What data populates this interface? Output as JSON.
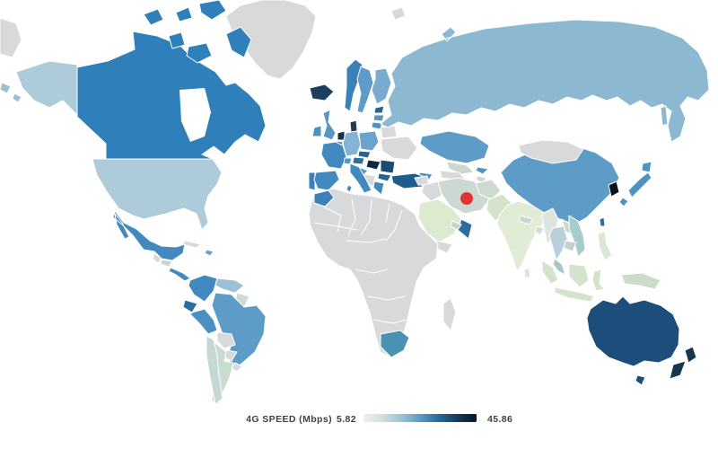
{
  "title": "World choropleth map of 4G speed",
  "legend": {
    "label": "4G SPEED (Mbps)",
    "min_value": "5.82",
    "max_value": "45.86",
    "gradient_stops": [
      "#edf2e6",
      "#cde0dc",
      "#9fc2d5",
      "#5c9ac6",
      "#2a6899",
      "#143a5c",
      "#0d1724"
    ]
  },
  "map": {
    "background_color": "#ffffff",
    "country_border_color": "#ffffff",
    "no_data_color": "#d8d9da",
    "marker": {
      "name": "red-dot-marker",
      "shape": "circle",
      "color": "#e23436",
      "location": "iran"
    },
    "countries": [
      {
        "id": "greenland",
        "fill": "#d8d9da"
      },
      {
        "id": "arctic-wrap",
        "fill": "#d8d9da"
      },
      {
        "id": "aleutian-islands",
        "fill": "#9dbfd4"
      },
      {
        "id": "canada",
        "fill": "#2e7fba"
      },
      {
        "id": "usa",
        "fill": "#aecbd9"
      },
      {
        "id": "mexico",
        "fill": "#4189bf"
      },
      {
        "id": "guatemala",
        "fill": "#d8d9da"
      },
      {
        "id": "honduras",
        "fill": "#c6d6d2"
      },
      {
        "id": "panama",
        "fill": "#4189bf"
      },
      {
        "id": "cuba",
        "fill": "#cfdcd7"
      },
      {
        "id": "hispaniola",
        "fill": "#6ba4cb"
      },
      {
        "id": "colombia",
        "fill": "#4189bf"
      },
      {
        "id": "venezuela",
        "fill": "#9cc0d4"
      },
      {
        "id": "guyana",
        "fill": "#ccdcd2"
      },
      {
        "id": "ecuador",
        "fill": "#2a6da0"
      },
      {
        "id": "peru",
        "fill": "#4a90c2"
      },
      {
        "id": "brazil",
        "fill": "#5e9cc8"
      },
      {
        "id": "bolivia",
        "fill": "#d8d9da"
      },
      {
        "id": "paraguay",
        "fill": "#d8d9da"
      },
      {
        "id": "chile",
        "fill": "#c5d8d4"
      },
      {
        "id": "argentina",
        "fill": "#c9dcd0"
      },
      {
        "id": "uruguay",
        "fill": "#d8d9da"
      },
      {
        "id": "iceland",
        "fill": "#1c3f60"
      },
      {
        "id": "united-kingdom",
        "fill": "#5795c2"
      },
      {
        "id": "ireland",
        "fill": "#4f93c1"
      },
      {
        "id": "norway",
        "fill": "#3a81b8"
      },
      {
        "id": "sweden",
        "fill": "#5e9cc8"
      },
      {
        "id": "finland",
        "fill": "#79abce"
      },
      {
        "id": "denmark",
        "fill": "#1d3a55"
      },
      {
        "id": "netherlands",
        "fill": "#15304b"
      },
      {
        "id": "belgium",
        "fill": "#3a81b8"
      },
      {
        "id": "germany",
        "fill": "#86b3d4"
      },
      {
        "id": "poland",
        "fill": "#6ba4cb"
      },
      {
        "id": "france",
        "fill": "#4189bf"
      },
      {
        "id": "spain",
        "fill": "#4189bf"
      },
      {
        "id": "portugal",
        "fill": "#3a81b8"
      },
      {
        "id": "italy",
        "fill": "#4189bf"
      },
      {
        "id": "switzerland",
        "fill": "#5795c2"
      },
      {
        "id": "austria",
        "fill": "#2e6e9e"
      },
      {
        "id": "czechia",
        "fill": "#2a618d"
      },
      {
        "id": "hungary",
        "fill": "#0f2940"
      },
      {
        "id": "romania",
        "fill": "#1d4a72"
      },
      {
        "id": "bulgaria",
        "fill": "#2a618d"
      },
      {
        "id": "greece",
        "fill": "#4189bf"
      },
      {
        "id": "croatia",
        "fill": "#5795c2"
      },
      {
        "id": "balkans",
        "fill": "#d8d9da"
      },
      {
        "id": "ukraine",
        "fill": "#d8d9da"
      },
      {
        "id": "belarus",
        "fill": "#d8d9da"
      },
      {
        "id": "estonia",
        "fill": "#2a618d"
      },
      {
        "id": "latvia",
        "fill": "#5795c2"
      },
      {
        "id": "lithuania",
        "fill": "#4f93c1"
      },
      {
        "id": "turkey",
        "fill": "#1e5c8c"
      },
      {
        "id": "russia",
        "fill": "#8cb8d2"
      },
      {
        "id": "svalbard",
        "fill": "#d8d9da"
      },
      {
        "id": "kazakhstan",
        "fill": "#5e9cc8"
      },
      {
        "id": "uzbekistan",
        "fill": "#ccd8ce"
      },
      {
        "id": "turkmenistan",
        "fill": "#d8d9da"
      },
      {
        "id": "kyrgyzstan",
        "fill": "#4f93c1"
      },
      {
        "id": "tajikistan",
        "fill": "#ccd8ce"
      },
      {
        "id": "caucasus",
        "fill": "#4f93c1"
      },
      {
        "id": "iran",
        "fill": "#ccd8d2"
      },
      {
        "id": "iraq",
        "fill": "#d8d9da"
      },
      {
        "id": "syria",
        "fill": "#d8d9da"
      },
      {
        "id": "saudi-arabia",
        "fill": "#dcead0"
      },
      {
        "id": "yemen",
        "fill": "#d8d9da"
      },
      {
        "id": "oman",
        "fill": "#2e6e9e"
      },
      {
        "id": "uae",
        "fill": "#c9d3ce"
      },
      {
        "id": "afghanistan",
        "fill": "#cdd9d1"
      },
      {
        "id": "pakistan",
        "fill": "#d5e4c9"
      },
      {
        "id": "india",
        "fill": "#e0ecd5"
      },
      {
        "id": "nepal",
        "fill": "#ccd8ce"
      },
      {
        "id": "bangladesh",
        "fill": "#d8d9da"
      },
      {
        "id": "sri-lanka",
        "fill": "#dce8d4"
      },
      {
        "id": "china",
        "fill": "#5e9cc8"
      },
      {
        "id": "mongolia",
        "fill": "#d8d9da"
      },
      {
        "id": "south-korea",
        "fill": "#0a121c"
      },
      {
        "id": "japan",
        "fill": "#4f93c1"
      },
      {
        "id": "taiwan",
        "fill": "#2e6e9e"
      },
      {
        "id": "myanmar",
        "fill": "#dce6dc"
      },
      {
        "id": "thailand",
        "fill": "#b9cfdb"
      },
      {
        "id": "laos",
        "fill": "#ccd6cc"
      },
      {
        "id": "vietnam",
        "fill": "#a8ccc9"
      },
      {
        "id": "cambodia",
        "fill": "#c2d2cc"
      },
      {
        "id": "malaysia",
        "fill": "#aac9c6"
      },
      {
        "id": "indonesia",
        "fill": "#d4e4cc"
      },
      {
        "id": "philippines",
        "fill": "#d8e8d4"
      },
      {
        "id": "new-guinea",
        "fill": "#ccdcc8"
      },
      {
        "id": "australia",
        "fill": "#1d4d7a"
      },
      {
        "id": "new-zealand",
        "fill": "#16374f"
      },
      {
        "id": "africa-no-data",
        "fill": "#d8d9da"
      },
      {
        "id": "morocco",
        "fill": "#3a81b8"
      },
      {
        "id": "south-africa",
        "fill": "#4a92b2"
      },
      {
        "id": "madagascar",
        "fill": "#d8d9da"
      }
    ]
  }
}
